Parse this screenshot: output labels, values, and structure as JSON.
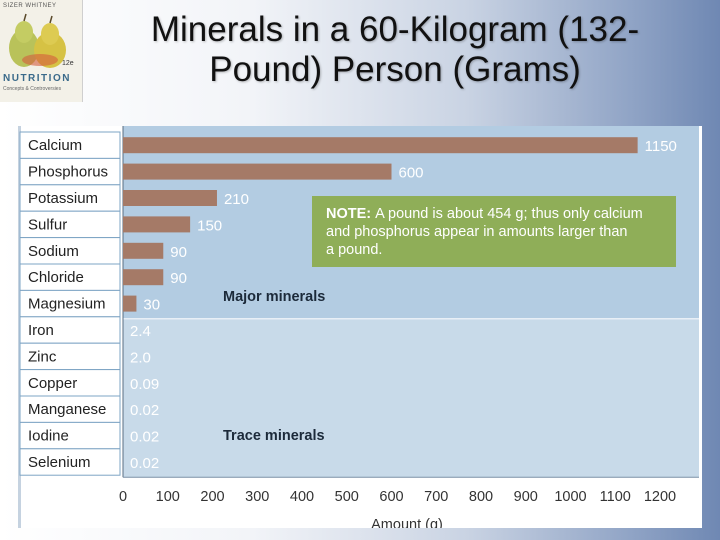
{
  "slide": {
    "title_line1": "Minerals in a 60-Kilogram (132-",
    "title_line2": "Pound) Person (Grams)"
  },
  "book_cover": {
    "authors": "SIZER WHITNEY",
    "brand": "NUTRITION",
    "subtitle": "Concepts & Controversies",
    "edition": "12e"
  },
  "chart_data": {
    "type": "bar",
    "orientation": "horizontal",
    "categories": [
      "Calcium",
      "Phosphorus",
      "Potassium",
      "Sulfur",
      "Sodium",
      "Chloride",
      "Magnesium",
      "Iron",
      "Zinc",
      "Copper",
      "Manganese",
      "Iodine",
      "Selenium"
    ],
    "values": [
      1150,
      600,
      210,
      150,
      90,
      90,
      30,
      2.4,
      2.0,
      0.09,
      0.02,
      0.02,
      0.02
    ],
    "value_labels": [
      "1150",
      "600",
      "210",
      "150",
      "90",
      "90",
      "30",
      "2.4",
      "2.0",
      "0.09",
      "0.02",
      "0.02",
      "0.02"
    ],
    "xlabel": "Amount (g)",
    "xlim": [
      0,
      1200
    ],
    "xticks": [
      0,
      100,
      200,
      300,
      400,
      500,
      600,
      700,
      800,
      900,
      1000,
      1100,
      1200
    ],
    "groups": [
      {
        "label": "Major minerals",
        "categories": [
          "Calcium",
          "Phosphorus",
          "Potassium",
          "Sulfur",
          "Sodium",
          "Chloride",
          "Magnesium"
        ]
      },
      {
        "label": "Trace minerals",
        "categories": [
          "Iron",
          "Zinc",
          "Copper",
          "Manganese",
          "Iodine",
          "Selenium"
        ]
      }
    ],
    "note": {
      "prefix": "NOTE:",
      "lines": [
        "A pound is about 454 g; thus only calcium",
        "and phosphorus appear in amounts larger than",
        "a pound."
      ]
    },
    "colors": {
      "bar": "#a57a67",
      "major_bg": "#b3cce2",
      "trace_bg": "#c8dae9",
      "note_bg": "#8fae58",
      "label_column_bg": "#ffffff",
      "label_border": "#7ea4c4"
    }
  }
}
